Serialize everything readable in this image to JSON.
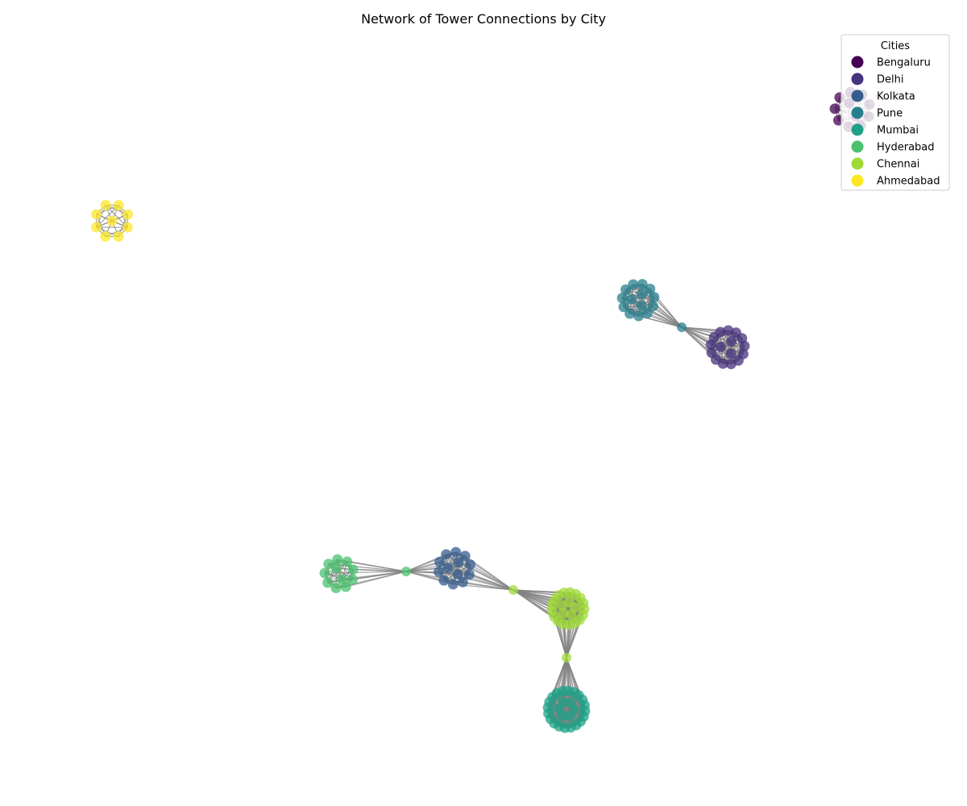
{
  "chart_data": {
    "type": "network",
    "title": "Network of Tower Connections by City",
    "legend": {
      "title": "Cities",
      "placement": "top-right",
      "entries": [
        {
          "name": "Bengaluru",
          "color": "#440154"
        },
        {
          "name": "Delhi",
          "color": "#46327e"
        },
        {
          "name": "Kolkata",
          "color": "#365c8d"
        },
        {
          "name": "Pune",
          "color": "#277f8e"
        },
        {
          "name": "Mumbai",
          "color": "#1fa187"
        },
        {
          "name": "Hyderabad",
          "color": "#4ac16d"
        },
        {
          "name": "Chennai",
          "color": "#a0da39"
        },
        {
          "name": "Ahmedabad",
          "color": "#fde725"
        }
      ]
    }
  }
}
